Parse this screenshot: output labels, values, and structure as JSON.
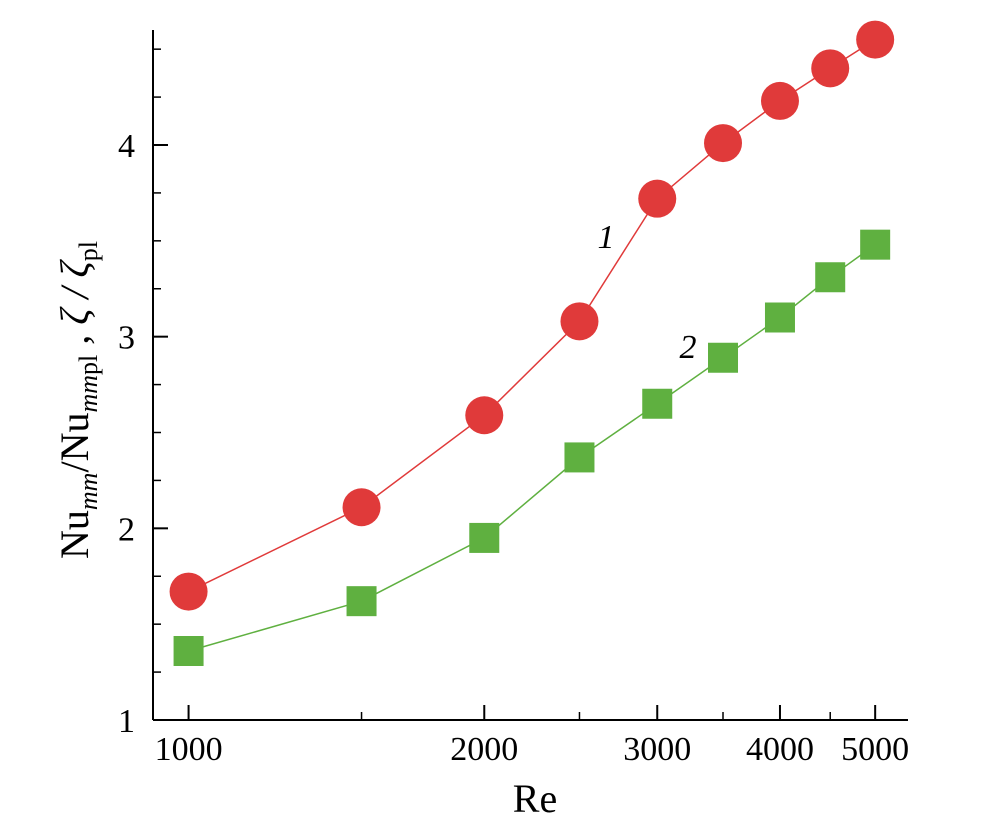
{
  "chart_data": {
    "type": "line",
    "xlabel": "Re",
    "ylabel_parts": {
      "nu1": "Nu",
      "sub1": "mm",
      "slash1": "/Nu",
      "sub2": "mm",
      "sub2b": "pl",
      "sep": " , ζ / ζ",
      "sub3": "pl"
    },
    "x_scale": "log",
    "xlim": [
      920,
      5400
    ],
    "ylim": [
      1,
      4.6
    ],
    "x_ticks": [
      1000,
      2000,
      3000,
      4000,
      5000
    ],
    "x_tick_labels": [
      "1000",
      "2000",
      "3000",
      "4000",
      "5000"
    ],
    "x_minor_ticks": [
      1500,
      2500,
      3500,
      4500
    ],
    "y_ticks": [
      1,
      2,
      3,
      4
    ],
    "y_tick_labels": [
      "1",
      "2",
      "3",
      "4"
    ],
    "y_minor_ticks": [
      1.25,
      1.5,
      1.75,
      2.25,
      2.5,
      2.75,
      3.25,
      3.5,
      3.75,
      4.25,
      4.5
    ],
    "grid": false,
    "series": [
      {
        "label": "1",
        "marker": "circle",
        "color": "#e03a3a",
        "line_color": "#e03a3a",
        "x": [
          1000,
          1500,
          2000,
          2500,
          3000,
          3500,
          4000,
          4500,
          5000
        ],
        "y": [
          1.67,
          2.11,
          2.59,
          3.08,
          3.72,
          4.01,
          4.23,
          4.4,
          4.55
        ]
      },
      {
        "label": "2",
        "marker": "square",
        "color": "#5fb040",
        "line_color": "#5fb040",
        "x": [
          1000,
          1500,
          2000,
          2500,
          3000,
          3500,
          4000,
          4500,
          5000
        ],
        "y": [
          1.36,
          1.62,
          1.95,
          2.37,
          2.65,
          2.89,
          3.1,
          3.31,
          3.48
        ]
      }
    ]
  }
}
